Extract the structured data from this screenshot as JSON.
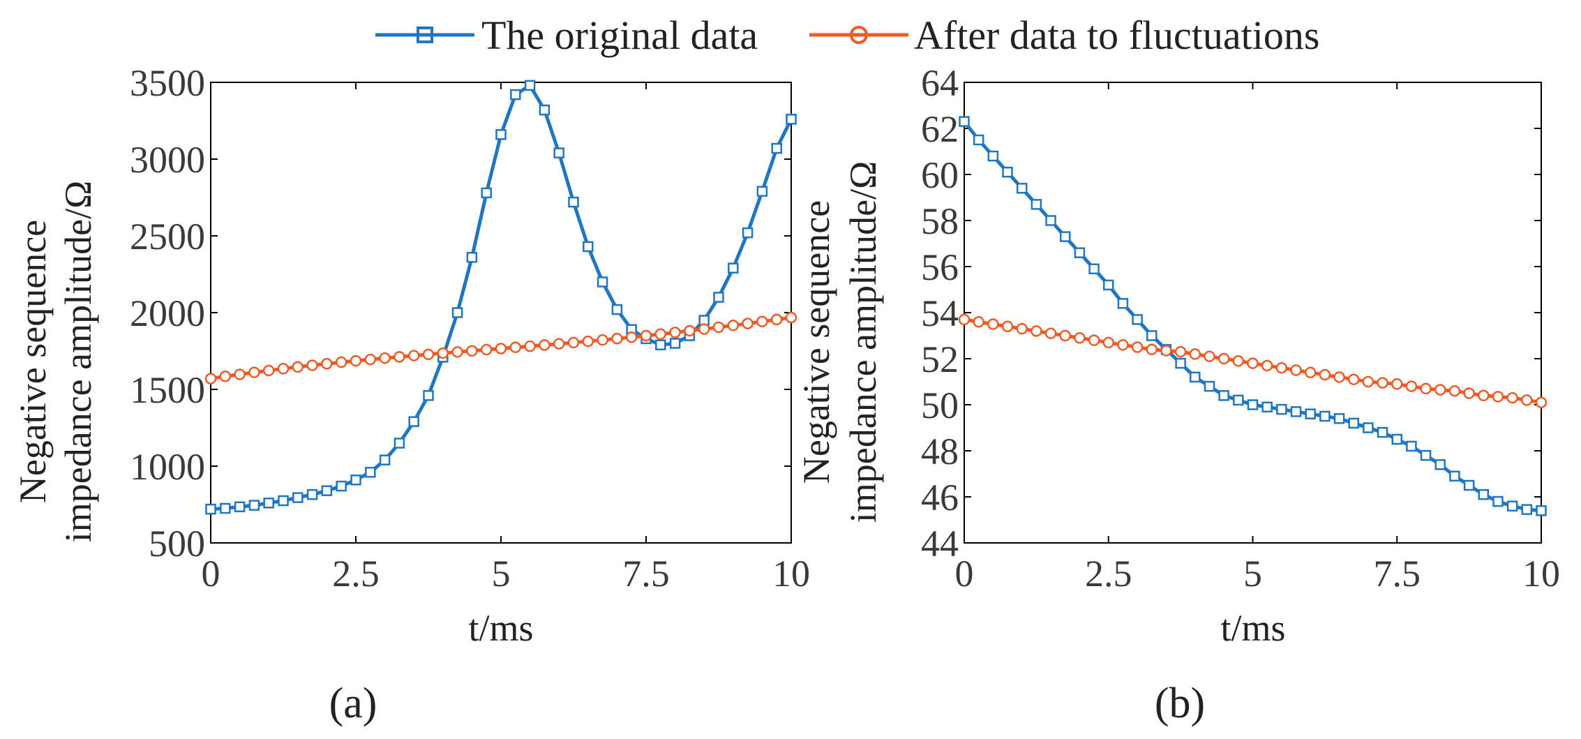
{
  "colors": {
    "original": "#1f77c4",
    "fluctuation": "#f05a23"
  },
  "legend": [
    {
      "label": "The original data",
      "marker": "square",
      "color_key": "original"
    },
    {
      "label": "After data to fluctuations",
      "marker": "circle",
      "color_key": "fluctuation"
    }
  ],
  "chart_data": [
    {
      "type": "line",
      "panel": "(a)",
      "xlabel": "t/ms",
      "ylabel_lines": [
        "Negative sequence",
        "impedance amplitude/Ω"
      ],
      "xlim": [
        0,
        10
      ],
      "ylim": [
        500,
        3500
      ],
      "xticks": [
        0,
        2.5,
        5,
        7.5,
        10
      ],
      "xtick_labels": [
        "0",
        "2.5",
        "5",
        "7.5",
        "10"
      ],
      "yticks": [
        500,
        1000,
        1500,
        2000,
        2500,
        3000,
        3500
      ],
      "ytick_labels": [
        "500",
        "1000",
        "1500",
        "2000",
        "2500",
        "3000",
        "3500"
      ],
      "series": [
        {
          "name": "The original data",
          "marker": "square",
          "color_key": "original",
          "x": [
            0.0,
            0.25,
            0.5,
            0.75,
            1.0,
            1.25,
            1.5,
            1.75,
            2.0,
            2.25,
            2.5,
            2.75,
            3.0,
            3.25,
            3.5,
            3.75,
            4.0,
            4.25,
            4.5,
            4.75,
            5.0,
            5.25,
            5.5,
            5.75,
            6.0,
            6.25,
            6.5,
            6.75,
            7.0,
            7.25,
            7.5,
            7.75,
            8.0,
            8.25,
            8.5,
            8.75,
            9.0,
            9.25,
            9.5,
            9.75,
            10.0
          ],
          "y": [
            720,
            725,
            735,
            745,
            760,
            775,
            795,
            815,
            840,
            870,
            910,
            960,
            1040,
            1150,
            1290,
            1460,
            1710,
            2000,
            2360,
            2780,
            3160,
            3420,
            3480,
            3320,
            3040,
            2720,
            2430,
            2200,
            2020,
            1890,
            1830,
            1790,
            1800,
            1850,
            1950,
            2100,
            2290,
            2520,
            2790,
            3070,
            3260
          ]
        },
        {
          "name": "After data to fluctuations",
          "marker": "circle",
          "color_key": "fluctuation",
          "x": [
            0.0,
            0.25,
            0.5,
            0.75,
            1.0,
            1.25,
            1.5,
            1.75,
            2.0,
            2.25,
            2.5,
            2.75,
            3.0,
            3.25,
            3.5,
            3.75,
            4.0,
            4.25,
            4.5,
            4.75,
            5.0,
            5.25,
            5.5,
            5.75,
            6.0,
            6.25,
            6.5,
            6.75,
            7.0,
            7.25,
            7.5,
            7.75,
            8.0,
            8.25,
            8.5,
            8.75,
            9.0,
            9.25,
            9.5,
            9.75,
            10.0
          ],
          "y": [
            1570,
            1585,
            1598,
            1611,
            1623,
            1635,
            1646,
            1657,
            1667,
            1677,
            1686,
            1695,
            1704,
            1712,
            1720,
            1728,
            1736,
            1744,
            1751,
            1759,
            1766,
            1774,
            1781,
            1789,
            1797,
            1805,
            1813,
            1822,
            1831,
            1840,
            1850,
            1860,
            1871,
            1882,
            1893,
            1905,
            1917,
            1929,
            1942,
            1955,
            1968
          ]
        }
      ]
    },
    {
      "type": "line",
      "panel": "(b)",
      "xlabel": "t/ms",
      "ylabel_lines": [
        "Negative sequence",
        "impedance amplitude/Ω"
      ],
      "xlim": [
        0,
        10
      ],
      "ylim": [
        44,
        64
      ],
      "xticks": [
        0,
        2.5,
        5,
        7.5,
        10
      ],
      "xtick_labels": [
        "0",
        "2.5",
        "5",
        "7.5",
        "10"
      ],
      "yticks": [
        44,
        46,
        48,
        50,
        52,
        54,
        56,
        58,
        60,
        62,
        64
      ],
      "ytick_labels": [
        "44",
        "46",
        "48",
        "50",
        "52",
        "54",
        "56",
        "58",
        "60",
        "62",
        "64"
      ],
      "series": [
        {
          "name": "The original data",
          "marker": "square",
          "color_key": "original",
          "x": [
            0.0,
            0.25,
            0.5,
            0.75,
            1.0,
            1.25,
            1.5,
            1.75,
            2.0,
            2.25,
            2.5,
            2.75,
            3.0,
            3.25,
            3.5,
            3.75,
            4.0,
            4.25,
            4.5,
            4.75,
            5.0,
            5.25,
            5.5,
            5.75,
            6.0,
            6.25,
            6.5,
            6.75,
            7.0,
            7.25,
            7.5,
            7.75,
            8.0,
            8.25,
            8.5,
            8.75,
            9.0,
            9.25,
            9.5,
            9.75,
            10.0
          ],
          "y": [
            62.3,
            61.5,
            60.8,
            60.1,
            59.4,
            58.7,
            58.0,
            57.3,
            56.6,
            55.9,
            55.2,
            54.4,
            53.7,
            53.0,
            52.4,
            51.8,
            51.2,
            50.8,
            50.4,
            50.2,
            50.0,
            49.9,
            49.8,
            49.7,
            49.6,
            49.5,
            49.4,
            49.2,
            49.0,
            48.8,
            48.5,
            48.2,
            47.8,
            47.4,
            46.9,
            46.5,
            46.1,
            45.8,
            45.6,
            45.45,
            45.4
          ]
        },
        {
          "name": "After data to fluctuations",
          "marker": "circle",
          "color_key": "fluctuation",
          "x": [
            0.0,
            0.25,
            0.5,
            0.75,
            1.0,
            1.25,
            1.5,
            1.75,
            2.0,
            2.25,
            2.5,
            2.75,
            3.0,
            3.25,
            3.5,
            3.75,
            4.0,
            4.25,
            4.5,
            4.75,
            5.0,
            5.25,
            5.5,
            5.75,
            6.0,
            6.25,
            6.5,
            6.75,
            7.0,
            7.25,
            7.5,
            7.75,
            8.0,
            8.25,
            8.5,
            8.75,
            9.0,
            9.25,
            9.5,
            9.75,
            10.0
          ],
          "y": [
            53.7,
            53.6,
            53.5,
            53.4,
            53.3,
            53.2,
            53.1,
            53.0,
            52.9,
            52.8,
            52.7,
            52.6,
            52.5,
            52.4,
            52.35,
            52.3,
            52.2,
            52.1,
            52.0,
            51.9,
            51.8,
            51.7,
            51.6,
            51.5,
            51.4,
            51.3,
            51.2,
            51.1,
            51.0,
            50.95,
            50.9,
            50.8,
            50.7,
            50.65,
            50.6,
            50.5,
            50.4,
            50.35,
            50.3,
            50.2,
            50.1
          ]
        }
      ]
    }
  ]
}
